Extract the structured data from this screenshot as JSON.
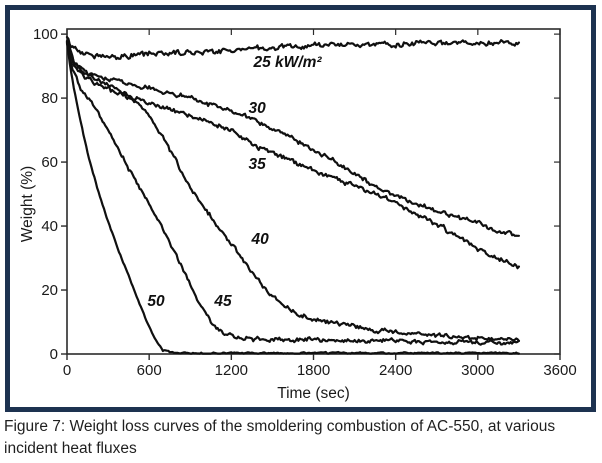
{
  "figure": {
    "caption": "Figure 7: Weight loss curves of the smoldering combustion of AC-550, at various incident heat fluxes"
  },
  "colors": {
    "frame_border": "#1d3250",
    "axis": "#2b2b2b",
    "text": "#1a1a1a",
    "curve": "#101010",
    "caption_text": "#1f1f1f"
  },
  "chart_data": {
    "type": "line",
    "title": "",
    "xlabel": "Time (sec)",
    "ylabel": "Weight (%)",
    "xlim": [
      0,
      3600
    ],
    "ylim": [
      0,
      101.6
    ],
    "x_ticks": [
      0,
      600,
      1200,
      1800,
      2400,
      3000,
      3600
    ],
    "y_ticks": [
      0,
      20,
      40,
      60,
      80,
      100
    ],
    "grid": false,
    "legend": "inline-curve-labels",
    "series": [
      {
        "flux": 25,
        "label": "25 kW/m²",
        "label_pos": [
          1610,
          89.7
        ],
        "noise": 0.8,
        "points": [
          [
            0,
            98.5
          ],
          [
            40,
            96
          ],
          [
            100,
            94.3
          ],
          [
            200,
            93.4
          ],
          [
            350,
            93
          ],
          [
            500,
            93.4
          ],
          [
            700,
            94
          ],
          [
            900,
            94.3
          ],
          [
            1100,
            94.8
          ],
          [
            1300,
            95.3
          ],
          [
            1500,
            95.8
          ],
          [
            1700,
            96.2
          ],
          [
            1900,
            96.5
          ],
          [
            2100,
            96.7
          ],
          [
            2300,
            96.8
          ],
          [
            2600,
            97
          ],
          [
            2900,
            97.1
          ],
          [
            3300,
            97
          ]
        ]
      },
      {
        "flux": 30,
        "label": "30",
        "label_pos": [
          1388,
          75.3
        ],
        "noise": 0.7,
        "points": [
          [
            0,
            97.5
          ],
          [
            50,
            91.5
          ],
          [
            120,
            88.5
          ],
          [
            250,
            86.5
          ],
          [
            400,
            85
          ],
          [
            600,
            83.2
          ],
          [
            800,
            81
          ],
          [
            1000,
            78.8
          ],
          [
            1200,
            76
          ],
          [
            1400,
            72.5
          ],
          [
            1600,
            68.5
          ],
          [
            1800,
            63.8
          ],
          [
            1950,
            60.5
          ],
          [
            2100,
            56.5
          ],
          [
            2250,
            52.5
          ],
          [
            2400,
            49.3
          ],
          [
            2550,
            47
          ],
          [
            2700,
            45
          ],
          [
            2850,
            42.8
          ],
          [
            3000,
            40.8
          ],
          [
            3150,
            38.6
          ],
          [
            3300,
            36.5
          ]
        ]
      },
      {
        "flux": 35,
        "label": "35",
        "label_pos": [
          1388,
          57.8
        ],
        "noise": 0.7,
        "points": [
          [
            0,
            97.5
          ],
          [
            50,
            90.5
          ],
          [
            120,
            87
          ],
          [
            250,
            83.5
          ],
          [
            400,
            81
          ],
          [
            600,
            78.5
          ],
          [
            800,
            75.8
          ],
          [
            1000,
            73
          ],
          [
            1200,
            70
          ],
          [
            1400,
            64.5
          ],
          [
            1600,
            61
          ],
          [
            1800,
            57.5
          ],
          [
            1950,
            55
          ],
          [
            2100,
            52.5
          ],
          [
            2250,
            49.8
          ],
          [
            2400,
            47.2
          ],
          [
            2550,
            44
          ],
          [
            2700,
            40.5
          ],
          [
            2850,
            36.8
          ],
          [
            3000,
            33
          ],
          [
            3150,
            30
          ],
          [
            3300,
            27.5
          ]
        ]
      },
      {
        "flux": 40,
        "label": "40",
        "label_pos": [
          1410,
          34.4
        ],
        "noise": 0.65,
        "points": [
          [
            0,
            97.5
          ],
          [
            50,
            91
          ],
          [
            120,
            88
          ],
          [
            250,
            85
          ],
          [
            400,
            82
          ],
          [
            500,
            79
          ],
          [
            600,
            74.5
          ],
          [
            700,
            68
          ],
          [
            800,
            60
          ],
          [
            900,
            52
          ],
          [
            1000,
            46
          ],
          [
            1100,
            40
          ],
          [
            1200,
            34.5
          ],
          [
            1300,
            28.5
          ],
          [
            1400,
            23
          ],
          [
            1500,
            18
          ],
          [
            1600,
            14.5
          ],
          [
            1700,
            12.3
          ],
          [
            1800,
            11
          ],
          [
            1900,
            10
          ],
          [
            2000,
            9.2
          ],
          [
            2200,
            8
          ],
          [
            2400,
            6.8
          ],
          [
            2600,
            6
          ],
          [
            2800,
            5.5
          ],
          [
            3000,
            5
          ],
          [
            3300,
            4.3
          ]
        ]
      },
      {
        "flux": 45,
        "label": "45",
        "label_pos": [
          1139,
          15.0
        ],
        "noise": 0.6,
        "points": [
          [
            0,
            97.5
          ],
          [
            40,
            89
          ],
          [
            100,
            83
          ],
          [
            200,
            77.5
          ],
          [
            300,
            70
          ],
          [
            400,
            62
          ],
          [
            500,
            54
          ],
          [
            560,
            50
          ],
          [
            650,
            43
          ],
          [
            750,
            35
          ],
          [
            850,
            26
          ],
          [
            950,
            17
          ],
          [
            1050,
            10
          ],
          [
            1150,
            6.2
          ],
          [
            1250,
            5
          ],
          [
            1400,
            4.6
          ],
          [
            1600,
            4.3
          ],
          [
            1800,
            4.6
          ],
          [
            2000,
            4
          ],
          [
            2300,
            4.2
          ],
          [
            2600,
            3.8
          ],
          [
            3000,
            3.6
          ],
          [
            3300,
            3.4
          ]
        ]
      },
      {
        "flux": 50,
        "label": "50",
        "label_pos": [
          650,
          15.0
        ],
        "noise": 0.25,
        "points": [
          [
            0,
            97.5
          ],
          [
            20,
            91
          ],
          [
            50,
            83
          ],
          [
            100,
            72.5
          ],
          [
            150,
            63
          ],
          [
            220,
            52
          ],
          [
            300,
            41.5
          ],
          [
            380,
            32
          ],
          [
            450,
            24.5
          ],
          [
            520,
            17
          ],
          [
            580,
            10.5
          ],
          [
            640,
            5
          ],
          [
            700,
            1.2
          ],
          [
            760,
            0.4
          ],
          [
            900,
            0.3
          ],
          [
            1400,
            0.3
          ],
          [
            2000,
            0.3
          ],
          [
            2700,
            0.3
          ],
          [
            3300,
            0.3
          ]
        ]
      }
    ]
  }
}
